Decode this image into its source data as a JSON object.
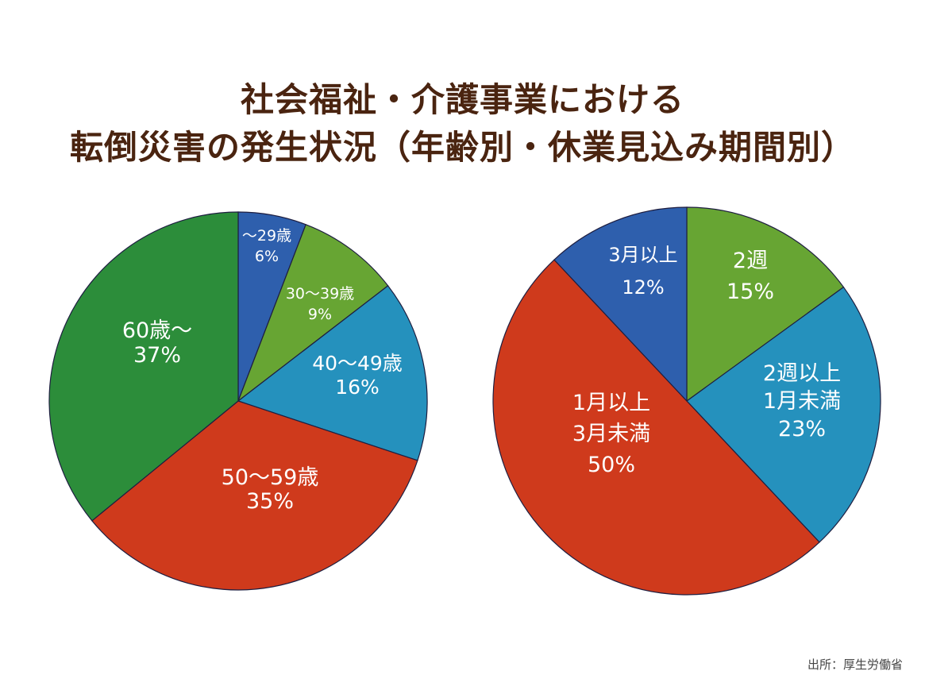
{
  "title": {
    "line1": "社会福祉・介護事業における",
    "line2": "転倒災害の発生状況（年齢別・休業見込み期間別）"
  },
  "source": "出所：厚生労働省",
  "chart_data": [
    {
      "type": "pie",
      "start_angle_deg": 0,
      "direction": "clockwise",
      "slices": [
        {
          "label": [
            "～29歳"
          ],
          "value": 6,
          "value_text": "6%",
          "color": "#2e5fad"
        },
        {
          "label": [
            "30～39歳"
          ],
          "value": 9,
          "value_text": "9%",
          "color": "#67a533"
        },
        {
          "label": [
            "40～49歳"
          ],
          "value": 16,
          "value_text": "16%",
          "color": "#2591bd"
        },
        {
          "label": [
            "50～59歳"
          ],
          "value": 35,
          "value_text": "35%",
          "color": "#cf3a1c"
        },
        {
          "label": [
            "60歳～"
          ],
          "value": 37,
          "value_text": "37%",
          "color": "#2c8d3a"
        }
      ]
    },
    {
      "type": "pie",
      "start_angle_deg": 0,
      "direction": "clockwise",
      "slices": [
        {
          "label": [
            "2週"
          ],
          "value": 15,
          "value_text": "15%",
          "color": "#67a533"
        },
        {
          "label": [
            "2週以上",
            "1月未満"
          ],
          "value": 23,
          "value_text": "23%",
          "color": "#2591bd"
        },
        {
          "label": [
            "1月以上",
            "3月未満"
          ],
          "value": 50,
          "value_text": "50%",
          "color": "#cf3a1c"
        },
        {
          "label": [
            "3月以上"
          ],
          "value": 12,
          "value_text": "12%",
          "color": "#2e5fad"
        }
      ]
    }
  ]
}
